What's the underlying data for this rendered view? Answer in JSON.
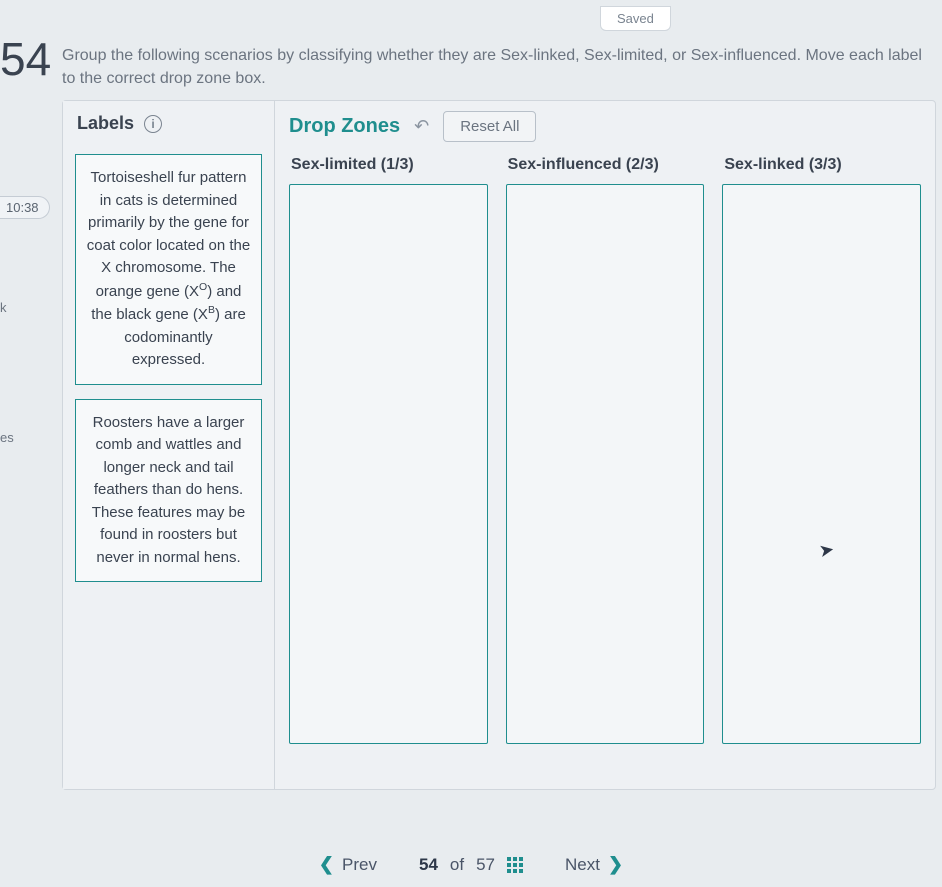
{
  "status": {
    "saved_label": "Saved"
  },
  "question": {
    "number": "54",
    "instructions": "Group the following scenarios by classifying whether they are Sex-linked, Sex-limited, or Sex-influenced. Move each label to the correct drop zone box."
  },
  "sidebar": {
    "timer": "10:38",
    "item_k": "k",
    "item_es": "es"
  },
  "labels_panel": {
    "title": "Labels",
    "info_icon": "i",
    "cards": [
      "Tortoiseshell fur pattern in cats is determined primarily by the gene for coat color located on the X chromosome. The orange gene (XO) and the black gene (XB) are codominantly expressed.",
      "Roosters have a larger comb and wattles and longer neck and tail feathers than do hens. These features may be found in roosters but never in normal hens."
    ]
  },
  "dropzones_panel": {
    "title": "Drop Zones",
    "undo_glyph": "↶",
    "reset_label": "Reset All",
    "zones": [
      {
        "title": "Sex-limited (1/3)"
      },
      {
        "title": "Sex-influenced (2/3)"
      },
      {
        "title": "Sex-linked (3/3)"
      }
    ]
  },
  "pagination": {
    "prev_label": "Prev",
    "next_label": "Next",
    "current": "54",
    "of_label": "of",
    "total": "57",
    "chev_left": "❮",
    "chev_right": "❯"
  },
  "colors": {
    "accent": "#1f8e8e",
    "border": "#d0d6dc",
    "text_muted": "#6b7480"
  }
}
